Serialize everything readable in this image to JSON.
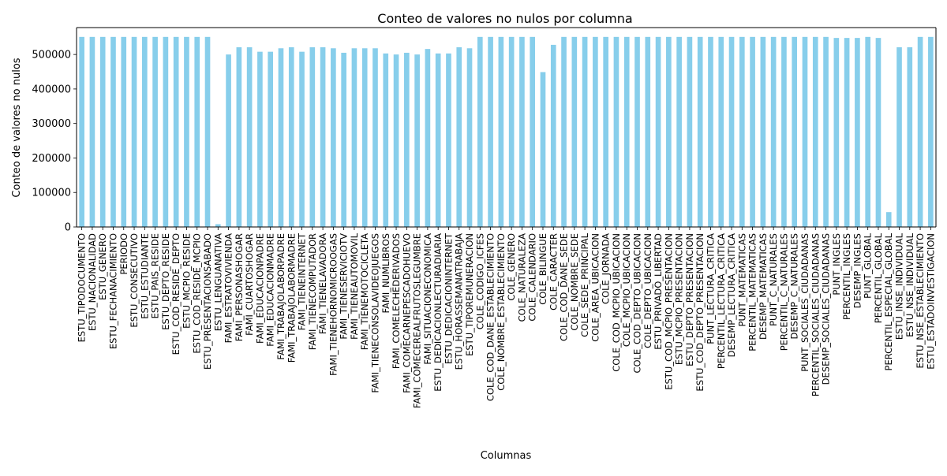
{
  "chart_data": {
    "type": "bar",
    "title": "Conteo de valores no nulos por columna",
    "xlabel": "Columnas",
    "ylabel": "Conteo de valores no nulos",
    "ylim": [
      0,
      578000
    ],
    "yticks": [
      0,
      100000,
      200000,
      300000,
      400000,
      500000
    ],
    "grid": false,
    "legend": "none",
    "bar_color": "#87CEEB",
    "categories": [
      "ESTU_TIPODOCUMENTO",
      "ESTU_NACIONALIDAD",
      "ESTU_GENERO",
      "ESTU_FECHANACIMIENTO",
      "PERIODO",
      "ESTU_CONSECUTIVO",
      "ESTU_ESTUDIANTE",
      "ESTU_PAIS_RESIDE",
      "ESTU_DEPTO_RESIDE",
      "ESTU_COD_RESIDE_DEPTO",
      "ESTU_MCPIO_RESIDE",
      "ESTU_COD_RESIDE_MCPIO",
      "ESTU_PRESENTACIONSABADO",
      "ESTU_LENGUANATIVA",
      "FAMI_ESTRATOVIVIENDA",
      "FAMI_PERSONASHOGAR",
      "FAMI_CUARTOSHOGAR",
      "FAMI_EDUCACIONPADRE",
      "FAMI_EDUCACIONMADRE",
      "FAMI_TRABAJOLABORPADRE",
      "FAMI_TRABAJOLABORMADRE",
      "FAMI_TIENEINTERNET",
      "FAMI_TIENECOMPUTADOR",
      "FAMI_TIENELAVADORA",
      "FAMI_TIENEHORNOMICROOGAS",
      "FAMI_TIENESERVICIOTV",
      "FAMI_TIENEAUTOMOVIL",
      "FAMI_TIENEMOTOCICLETA",
      "FAMI_TIENECONSOLAVIDEOJUEGOS",
      "FAMI_NUMLIBROS",
      "FAMI_COMELECHEDERIVADOS",
      "FAMI_COMECARNEPESCADOHUEVO",
      "FAMI_COMECEREALFRUTOSLEGUMBRE",
      "FAMI_SITUACIONECONOMICA",
      "ESTU_DEDICACIONLECTURADIARIA",
      "ESTU_DEDICACIONINTERNET",
      "ESTU_HORASSEMANATRABAJA",
      "ESTU_TIPOREMUNERACION",
      "COLE_CODIGO_ICFES",
      "COLE_COD_DANE_ESTABLECIMIENTO",
      "COLE_NOMBRE_ESTABLECIMIENTO",
      "COLE_GENERO",
      "COLE_NATURALEZA",
      "COLE_CALENDARIO",
      "COLE_BILINGUE",
      "COLE_CARACTER",
      "COLE_COD_DANE_SEDE",
      "COLE_NOMBRE_SEDE",
      "COLE_SEDE_PRINCIPAL",
      "COLE_AREA_UBICACION",
      "COLE_JORNADA",
      "COLE_COD_MCPIO_UBICACION",
      "COLE_MCPIO_UBICACION",
      "COLE_COD_DEPTO_UBICACION",
      "COLE_DEPTO_UBICACION",
      "ESTU_PRIVADO_LIBERTAD",
      "ESTU_COD_MCPIO_PRESENTACION",
      "ESTU_MCPIO_PRESENTACION",
      "ESTU_DEPTO_PRESENTACION",
      "ESTU_COD_DEPTO_PRESENTACION",
      "PUNT_LECTURA_CRITICA",
      "PERCENTIL_LECTURA_CRITICA",
      "DESEMP_LECTURA_CRITICA",
      "PUNT_MATEMATICAS",
      "PERCENTIL_MATEMATICAS",
      "DESEMP_MATEMATICAS",
      "PUNT_C_NATURALES",
      "PERCENTIL_C_NATURALES",
      "DESEMP_C_NATURALES",
      "PUNT_SOCIALES_CIUDADANAS",
      "PERCENTIL_SOCIALES_CIUDADANAS",
      "DESEMP_SOCIALES_CIUDADANAS",
      "PUNT_INGLES",
      "PERCENTIL_INGLES",
      "DESEMP_INGLES",
      "PUNT_GLOBAL",
      "PERCENTIL_GLOBAL",
      "PERCENTIL_ESPECIAL_GLOBAL",
      "ESTU_INSE_INDIVIDUAL",
      "ESTU_NSE_INDIVIDUAL",
      "ESTU_NSE_ESTABLECIMIENTO",
      "ESTU_ESTADOINVESTIGACION"
    ],
    "values": [
      551000,
      551000,
      551000,
      551000,
      551000,
      551000,
      551000,
      551000,
      551000,
      551000,
      551000,
      551000,
      551000,
      8000,
      500000,
      521000,
      521000,
      508000,
      508000,
      518000,
      521000,
      508000,
      521000,
      521000,
      518000,
      505000,
      518000,
      518000,
      518000,
      503000,
      500000,
      505000,
      500000,
      516000,
      503000,
      503000,
      521000,
      518000,
      551000,
      551000,
      551000,
      551000,
      551000,
      551000,
      449000,
      528000,
      551000,
      551000,
      551000,
      551000,
      551000,
      551000,
      551000,
      551000,
      551000,
      551000,
      551000,
      551000,
      551000,
      551000,
      551000,
      551000,
      551000,
      551000,
      551000,
      551000,
      551000,
      551000,
      551000,
      551000,
      551000,
      551000,
      548000,
      548000,
      548000,
      551000,
      548000,
      43000,
      521000,
      521000,
      551000,
      551000
    ]
  }
}
